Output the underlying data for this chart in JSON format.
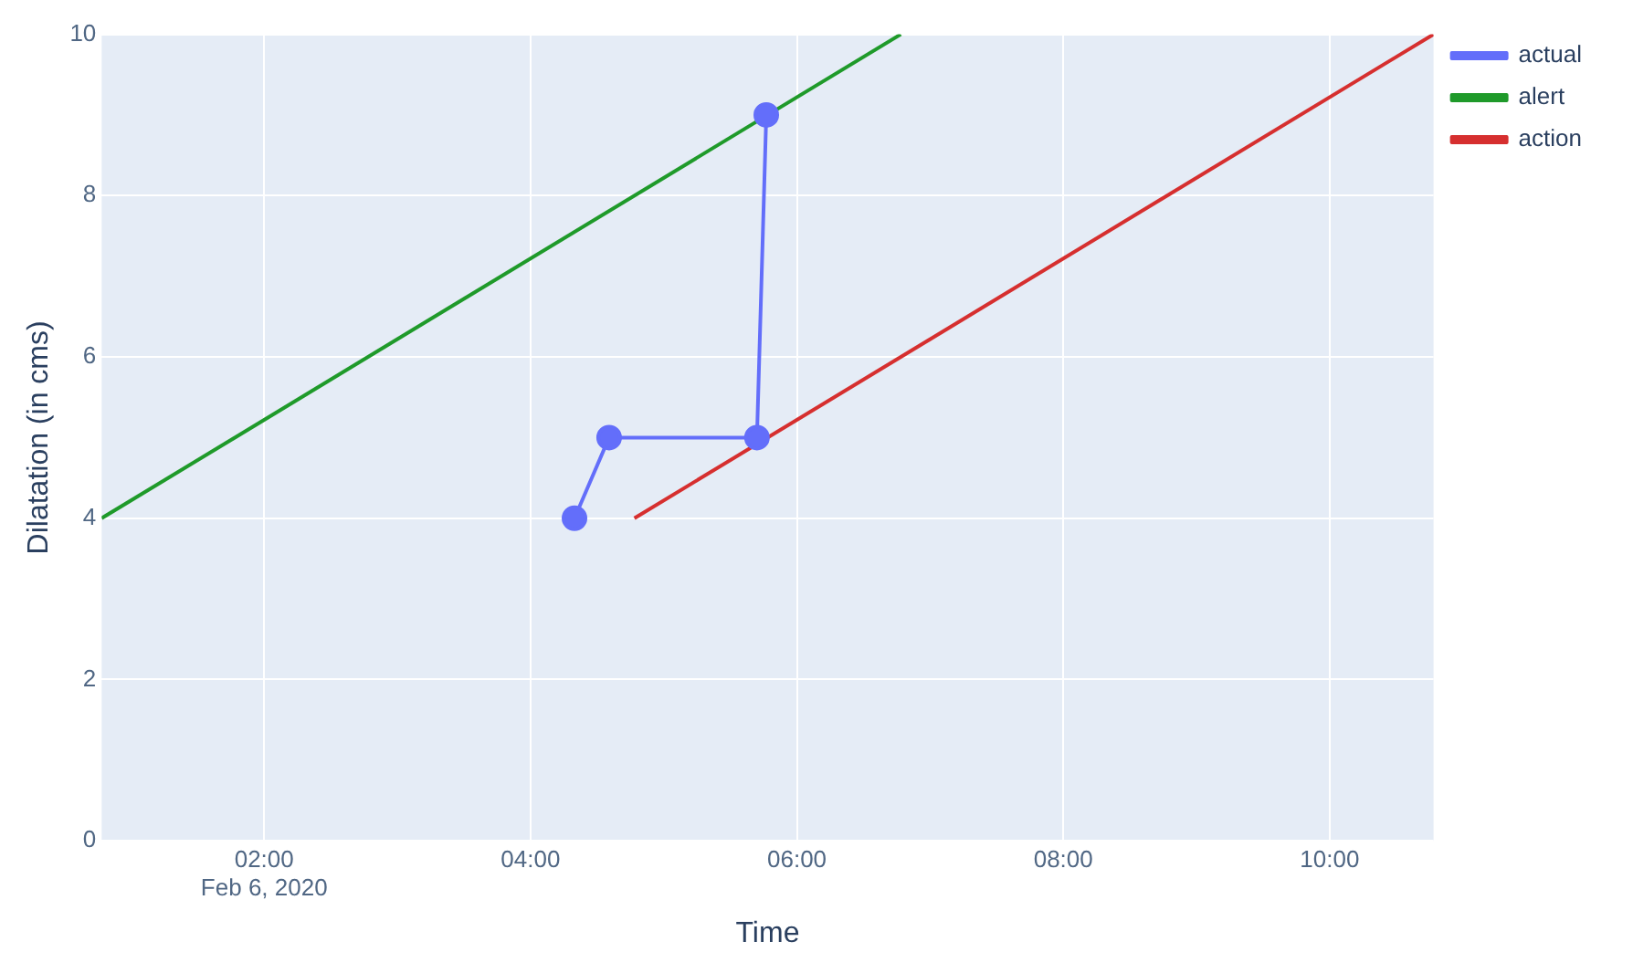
{
  "chart_data": {
    "type": "line",
    "xlabel": "Time",
    "ylabel": "Dilatation (in cms)",
    "xlim": [
      0.78,
      10.78
    ],
    "ylim": [
      0,
      10
    ],
    "xticks": [
      {
        "value": 2,
        "label": "02:00\nFeb 6, 2020"
      },
      {
        "value": 4,
        "label": "04:00"
      },
      {
        "value": 6,
        "label": "06:00"
      },
      {
        "value": 8,
        "label": "08:00"
      },
      {
        "value": 10,
        "label": "10:00"
      }
    ],
    "yticks": [
      0,
      2,
      4,
      6,
      8,
      10
    ],
    "grid": true,
    "legend": "top right",
    "line_style": "solid",
    "series": [
      {
        "name": "actual",
        "color": "#636efa",
        "marker": "circle",
        "x": [
          4.33,
          4.59,
          5.7,
          5.77
        ],
        "values": [
          4,
          5,
          5,
          9
        ]
      },
      {
        "name": "alert",
        "color": "#1f9a2a",
        "marker": "none",
        "x": [
          0.78,
          6.78
        ],
        "values": [
          4,
          10
        ]
      },
      {
        "name": "action",
        "color": "#d62f2f",
        "marker": "none",
        "x": [
          4.78,
          10.78
        ],
        "values": [
          4,
          10
        ]
      }
    ]
  }
}
